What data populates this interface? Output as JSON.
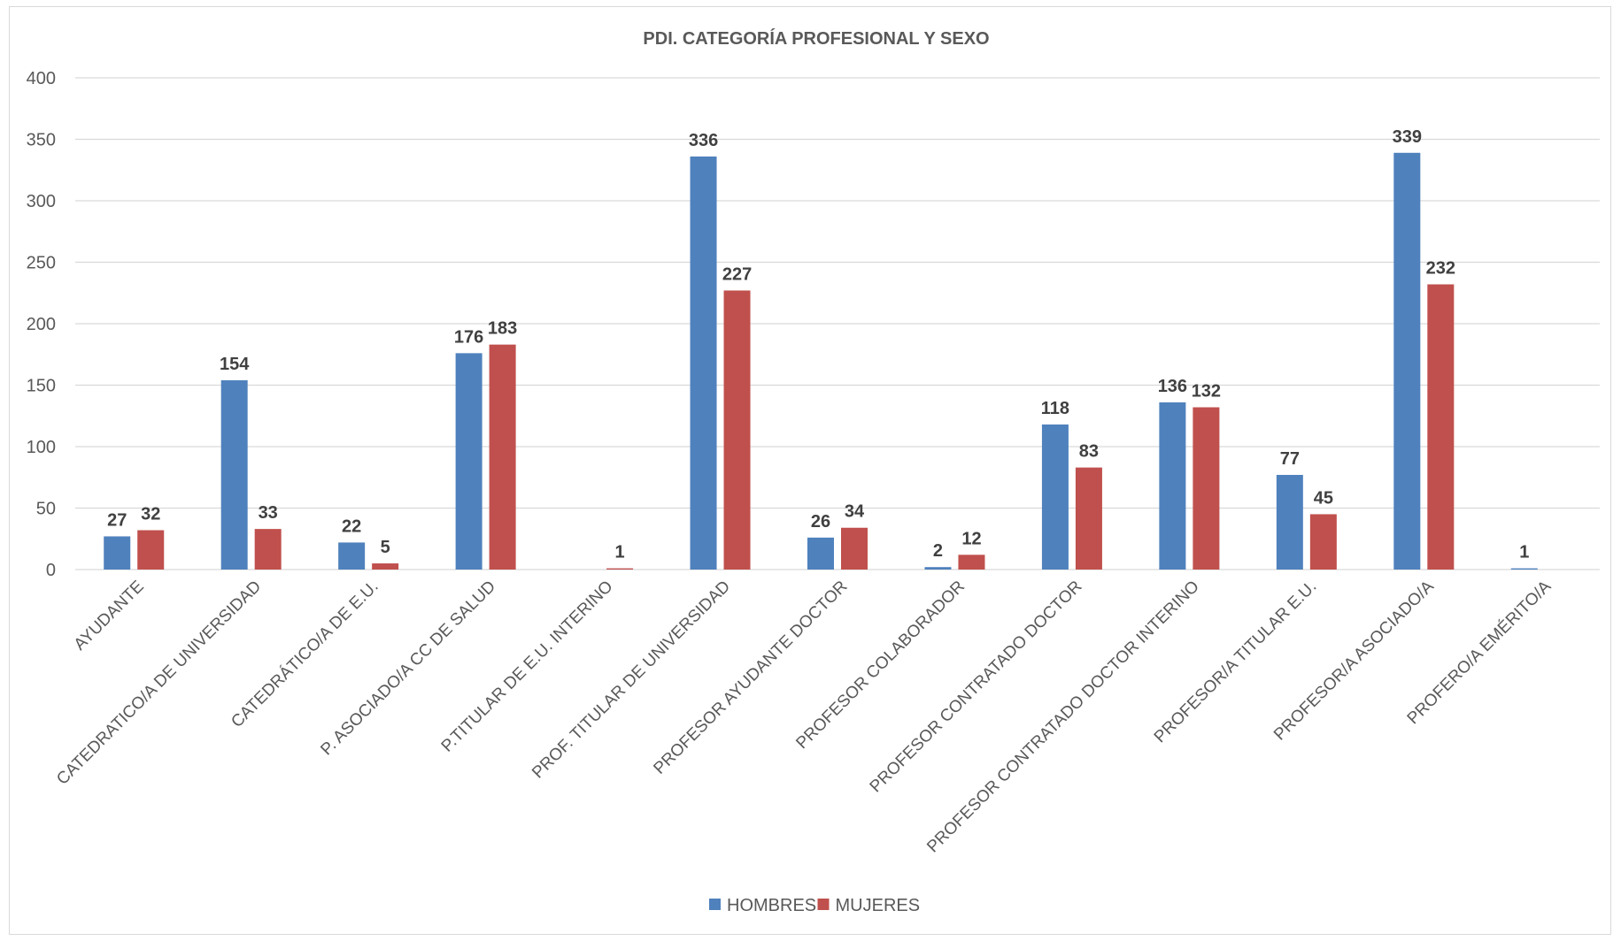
{
  "chart_data": {
    "type": "bar",
    "title": "PDI. CATEGORÍA PROFESIONAL Y SEXO",
    "xlabel": "",
    "ylabel": "",
    "ylim": [
      0,
      400
    ],
    "yticks": [
      0,
      50,
      100,
      150,
      200,
      250,
      300,
      350,
      400
    ],
    "grid": true,
    "legend_position": "bottom",
    "categories": [
      "AYUDANTE",
      "CATEDRATICO/A DE UNIVERSIDAD",
      "CATEDRÁTICO/A DE E.U.",
      "P. ASOCIADO/A CC DE SALUD",
      "P.TITULAR DE E.U. INTERINO",
      "PROF. TITULAR DE UNIVERSIDAD",
      "PROFESOR AYUDANTE DOCTOR",
      "PROFESOR COLABORADOR",
      "PROFESOR CONTRATADO DOCTOR",
      "PROFESOR CONTRATADO DOCTOR INTERINO",
      "PROFESOR/A TITULAR E.U.",
      "PROFESOR/A ASOCIADO/A",
      "PROFERO/A EMÉRITO/A"
    ],
    "series": [
      {
        "name": "HOMBRES",
        "color": "#4f81bd",
        "values": [
          27,
          154,
          22,
          176,
          null,
          336,
          26,
          2,
          118,
          136,
          77,
          339,
          1
        ]
      },
      {
        "name": "MUJERES",
        "color": "#c0504d",
        "values": [
          32,
          33,
          5,
          183,
          1,
          227,
          34,
          12,
          83,
          132,
          45,
          232,
          null
        ]
      }
    ]
  }
}
